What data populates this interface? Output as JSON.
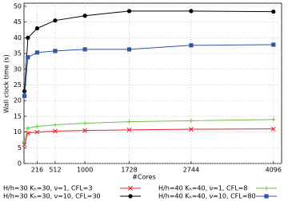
{
  "chart_data": {
    "type": "line",
    "x_label": "#Cores",
    "y_label": "Wall clock time (s)",
    "x": [
      8,
      64,
      216,
      512,
      1000,
      1728,
      2744,
      4096
    ],
    "xlim": [
      0,
      4230
    ],
    "xticks": [
      216,
      512,
      1000,
      1728,
      2744,
      4096
    ],
    "ylim": [
      0,
      51
    ],
    "yticks": [
      0,
      5,
      10,
      15,
      20,
      25,
      30,
      35,
      40,
      45,
      50
    ],
    "grid": true,
    "series": [
      {
        "name": "H/h=30 Kₕ=30, ν=1, CFL=3",
        "color": "#e8222a",
        "marker": "x",
        "values": [
          6,
          9.7,
          10,
          10.3,
          10.5,
          10.7,
          10.9,
          11.0
        ]
      },
      {
        "name": "H/h=40 Kₕ=40, ν=1, CFL=8",
        "color": "#6cc24a",
        "marker": "plus",
        "values": [
          7,
          11.3,
          11.8,
          12.3,
          12.8,
          13.3,
          13.6,
          14.0
        ]
      },
      {
        "name": "H/h=30 Kₕ=30, ν=10, CFL=30",
        "color": "#000000",
        "marker": "circle",
        "values": [
          23,
          40,
          43,
          45.5,
          47,
          48.5,
          48.5,
          48.3
        ]
      },
      {
        "name": "H/h=40 Kₕ=40, ν=10, CFL=80",
        "color": "#2f55a4",
        "marker": "square",
        "values": [
          21.5,
          33.8,
          35.3,
          35.8,
          36.3,
          36.3,
          37.6,
          37.8
        ]
      }
    ]
  }
}
